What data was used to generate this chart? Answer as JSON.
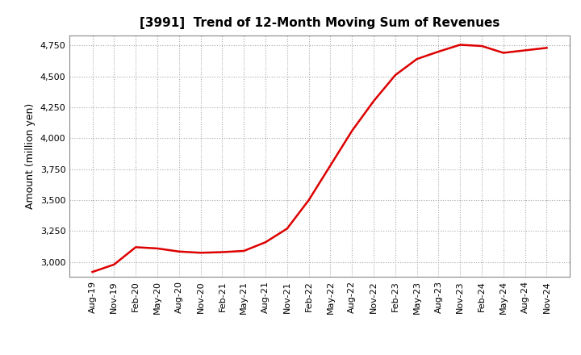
{
  "title": "[3991]  Trend of 12-Month Moving Sum of Revenues",
  "ylabel": "Amount (million yen)",
  "line_color": "#dd0000",
  "background_color": "#ffffff",
  "grid_color": "#aaaaaa",
  "ylim": [
    2880,
    4830
  ],
  "yticks": [
    3000,
    3250,
    3500,
    3750,
    4000,
    4250,
    4500,
    4750
  ],
  "x_labels": [
    "Aug-19",
    "Nov-19",
    "Feb-20",
    "May-20",
    "Aug-20",
    "Nov-20",
    "Feb-21",
    "May-21",
    "Aug-21",
    "Nov-21",
    "Feb-22",
    "May-22",
    "Aug-22",
    "Nov-22",
    "Feb-23",
    "May-23",
    "Aug-23",
    "Nov-23",
    "Feb-24",
    "May-24",
    "Aug-24",
    "Nov-24"
  ],
  "values": [
    2920,
    2980,
    3120,
    3110,
    3085,
    3075,
    3080,
    3090,
    3160,
    3270,
    3500,
    3780,
    4060,
    4300,
    4510,
    4640,
    4700,
    4755,
    4745,
    4690,
    4710,
    4730
  ],
  "title_fontsize": 11,
  "ylabel_fontsize": 9,
  "tick_fontsize": 8,
  "line_width": 1.8
}
